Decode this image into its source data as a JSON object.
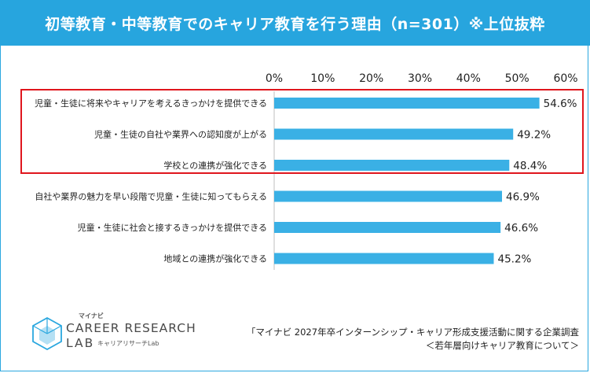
{
  "header": {
    "title": "初等教育・中等教育でのキャリア教育を行う理由（n=301）※上位抜粋"
  },
  "chart_data": {
    "type": "bar",
    "orientation": "horizontal",
    "title": "初等教育・中等教育でのキャリア教育を行う理由（n=301）※上位抜粋",
    "categories": [
      "児童・生徒に将来やキャリアを考えるきっかけを提供できる",
      "児童・生徒の自社や業界への認知度が上がる",
      "学校との連携が強化できる",
      "自社や業界の魅力を早い段階で児童・生徒に知ってもらえる",
      "児童・生徒に社会と接するきっかけを提供できる",
      "地域との連携が強化できる"
    ],
    "values": [
      54.6,
      49.2,
      48.4,
      46.9,
      46.6,
      45.2
    ],
    "value_labels": [
      "54.6%",
      "49.2%",
      "48.4%",
      "46.9%",
      "46.6%",
      "45.2%"
    ],
    "xlim": [
      0,
      60
    ],
    "tick_labels": [
      "0%",
      "10%",
      "20%",
      "30%",
      "40%",
      "50%",
      "60%"
    ],
    "highlighted_count": 3,
    "bar_color": "#3ab0e5",
    "highlight_color": "#e0161d",
    "header_color": "#27a5de"
  },
  "logo": {
    "small": "マイナビ",
    "main": "CAREER RESEARCH",
    "lab": "LAB",
    "sub": "キャリアリサーチLab"
  },
  "source": {
    "line1": "「マイナビ 2027年卒インターンシップ・キャリア形成支援活動に関する企業調査",
    "line2": "＜若年層向けキャリア教育について＞"
  }
}
